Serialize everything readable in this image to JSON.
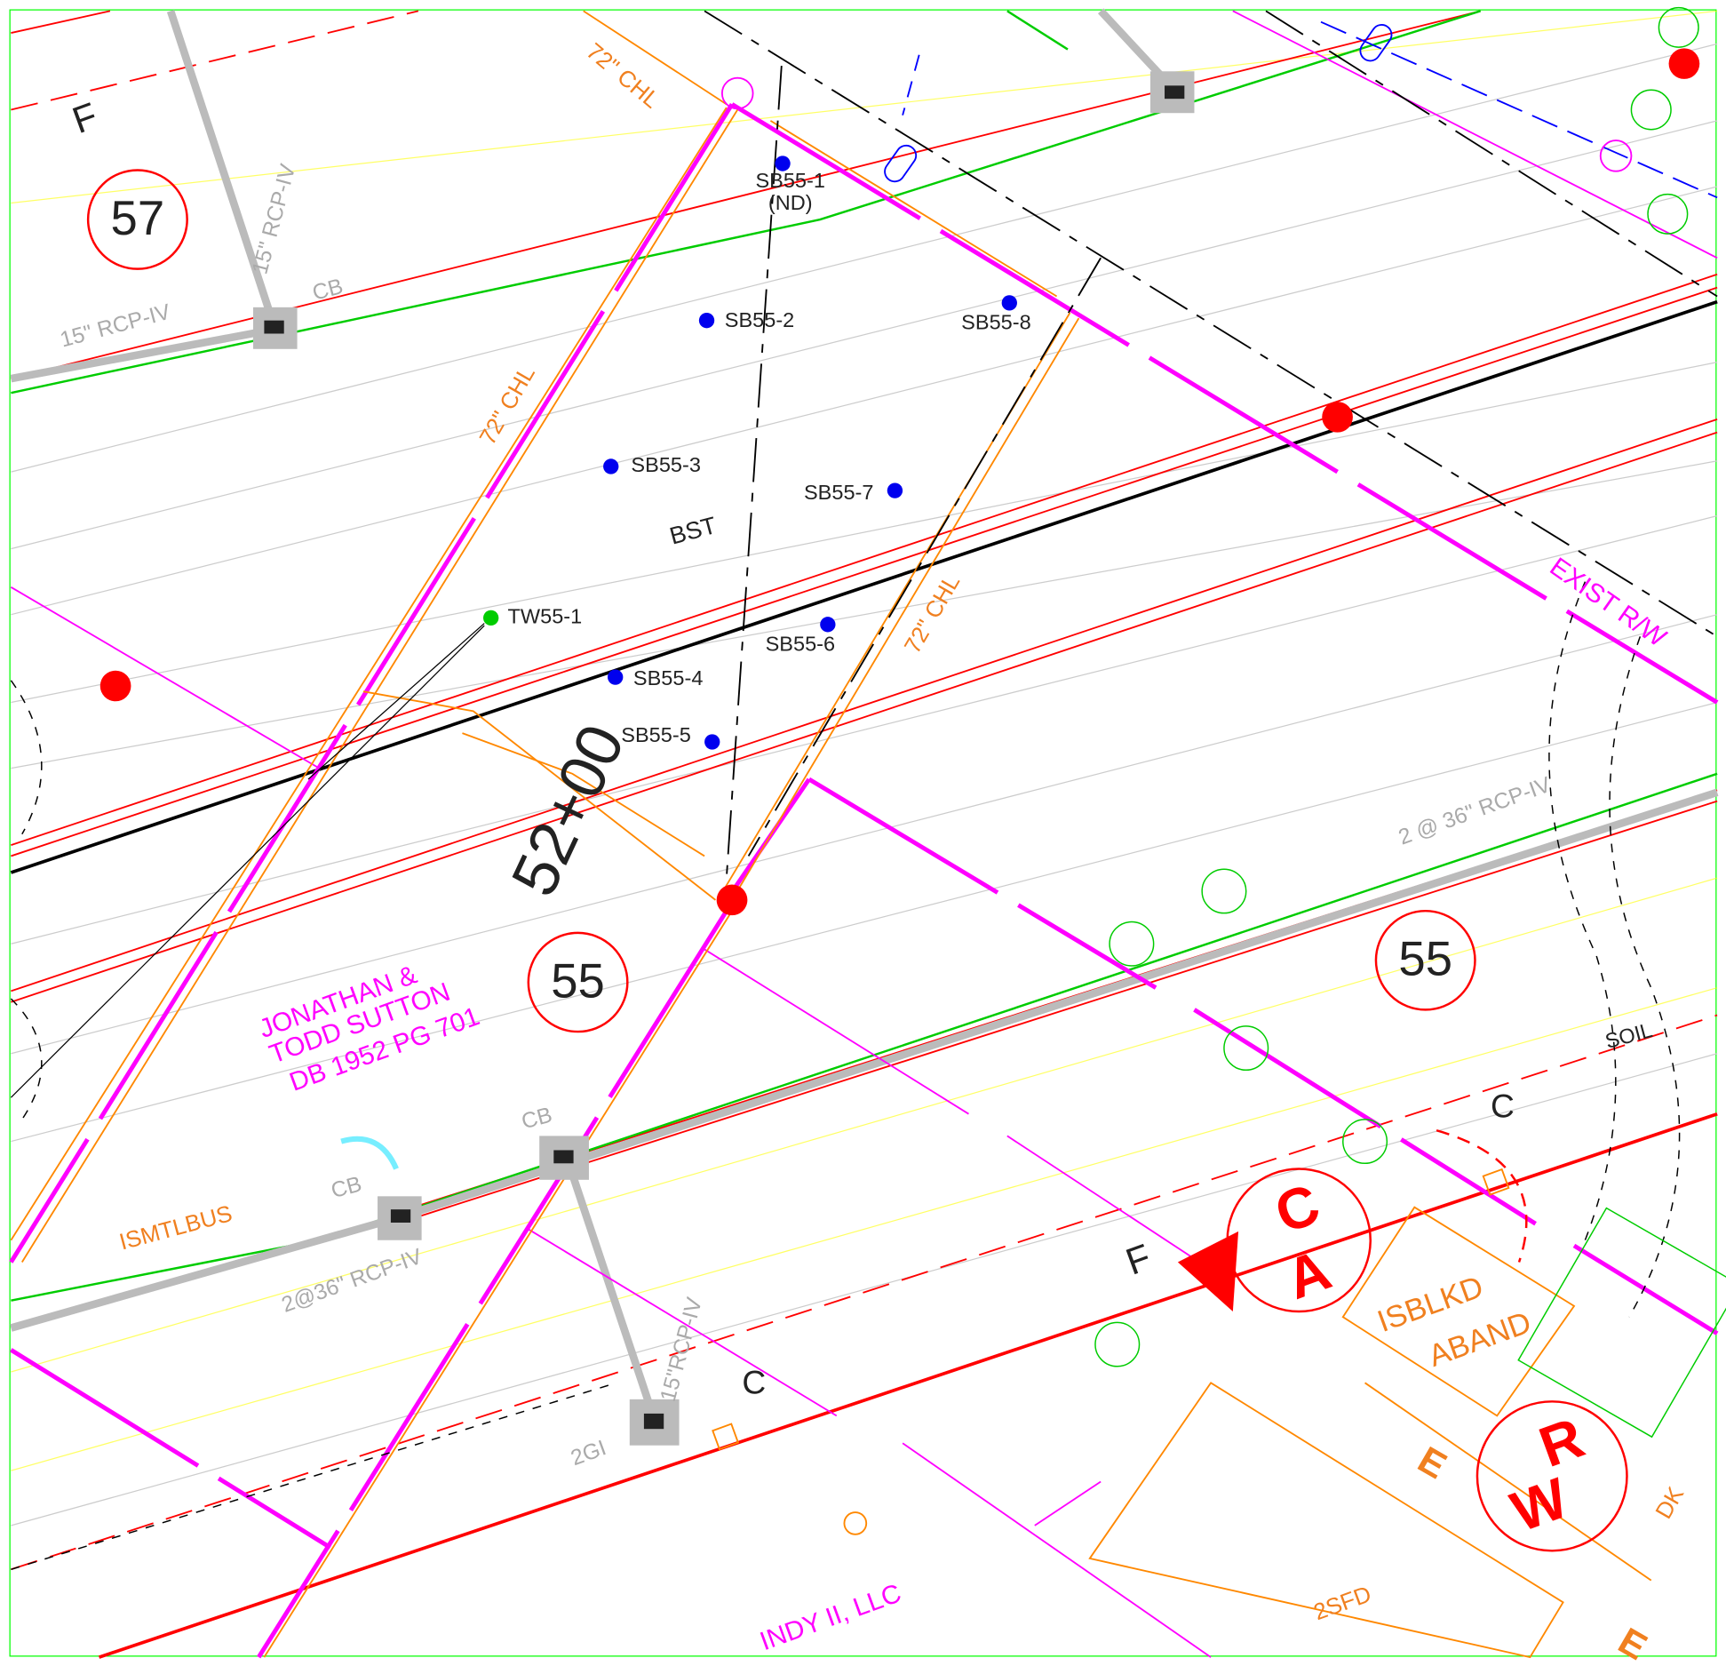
{
  "grid_letters": {
    "top_left": "F",
    "lower_f": "F",
    "c_upper": "C",
    "c_lower": "C",
    "e_orange": "E",
    "e_bottom": "E"
  },
  "parcels": [
    "57",
    "55",
    "55"
  ],
  "owners": {
    "jonathan_line1": "JONATHAN &",
    "jonathan_line2": "TODD SUTTON",
    "jonathan_deed": "DB 1952 PG 701",
    "indy": "INDY II, LLC"
  },
  "pipes": {
    "rcp_vertical_top": "15\" RCP-IV",
    "rcp_top_left": "15\" RCP-IV",
    "cb_top": "CB",
    "rcp_double_right": "2 @ 36\" RCP-IV",
    "cb_mid": "CB",
    "cb_left": "CB",
    "ismtlbus": "ISMTLBUS",
    "rcp_double_left": "2@36\" RCP-IV",
    "rcp_vertical_bottom": "15\"RCP-IV",
    "inlet": "2GI"
  },
  "fences": [
    "72\" CHL",
    "72\" CHL",
    "72\" CHL"
  ],
  "borings": {
    "sb1": "SB55-1",
    "sb1_note": "(ND)",
    "sb2": "SB55-2",
    "sb8": "SB55-8",
    "sb3": "SB55-3",
    "sb7": "SB55-7",
    "tw1": "TW55-1",
    "sb6": "SB55-6",
    "sb4": "SB55-4",
    "sb5": "SB55-5"
  },
  "surface": {
    "bst": "BST",
    "soil": "SOIL"
  },
  "station": "52+00",
  "row": "EXIST R/W",
  "callouts": {
    "ca_top": "C",
    "ca_bottom": "A",
    "rw_top": "R",
    "rw_bottom": "W"
  },
  "structures": {
    "isblkd": "ISBLKD",
    "aband": "ABAND",
    "sfd": "2SFD",
    "dk": "DK"
  }
}
